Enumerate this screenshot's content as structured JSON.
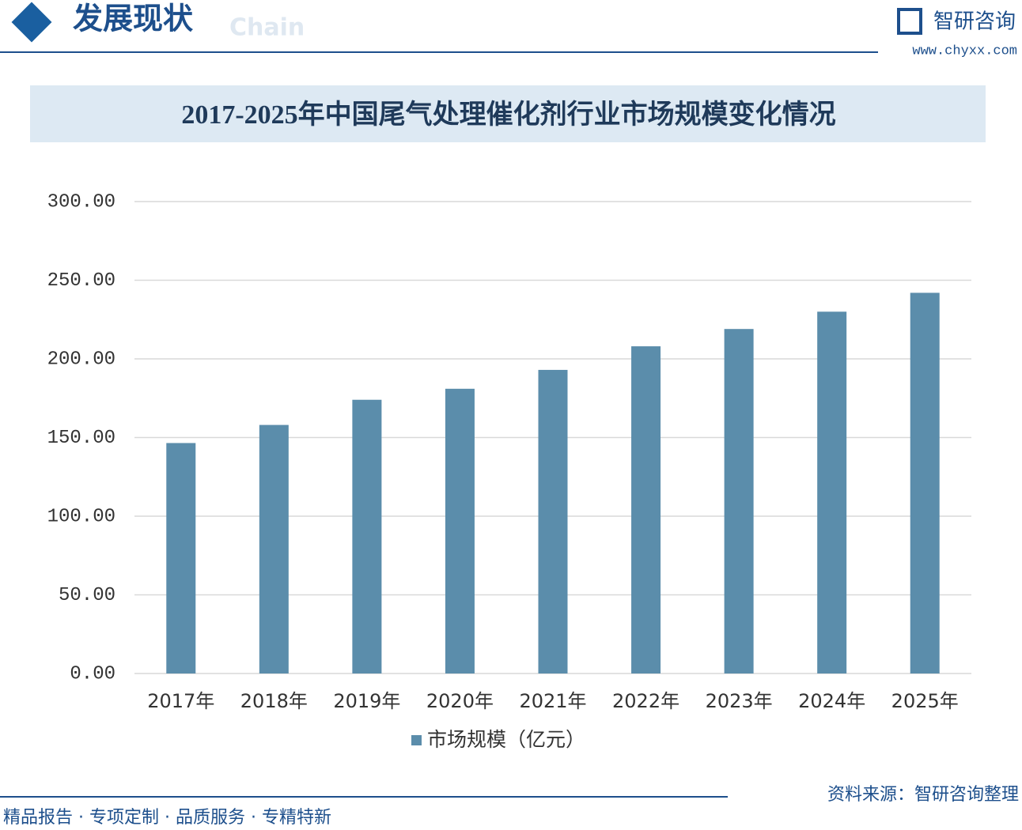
{
  "header": {
    "title": "发展现状",
    "watermark": "Chain",
    "brand": "智研咨询",
    "website": "www.chyxx.com"
  },
  "chart_data": {
    "type": "bar",
    "title": "2017-2025年中国尾气处理催化剂行业市场规模变化情况",
    "categories": [
      "2017年",
      "2018年",
      "2019年",
      "2020年",
      "2021年",
      "2022年",
      "2023年",
      "2024年",
      "2025年"
    ],
    "series": [
      {
        "name": "市场规模（亿元）",
        "color": "#5b8dab",
        "values": [
          146.5,
          158,
          174,
          181,
          193,
          208,
          219,
          230,
          242
        ]
      }
    ],
    "ylim": [
      0,
      300
    ],
    "yticks": [
      {
        "value": 0,
        "label": "0.00"
      },
      {
        "value": 50,
        "label": "50.00"
      },
      {
        "value": 100,
        "label": "100.00"
      },
      {
        "value": 150,
        "label": "150.00"
      },
      {
        "value": 200,
        "label": "200.00"
      },
      {
        "value": 250,
        "label": "250.00"
      },
      {
        "value": 300,
        "label": "300.00"
      }
    ],
    "grid": true,
    "legend": "bottom"
  },
  "footer": {
    "slogan": "精品报告 · 专项定制 · 品质服务 · 专精特新",
    "source": "资料来源：智研咨询整理"
  }
}
